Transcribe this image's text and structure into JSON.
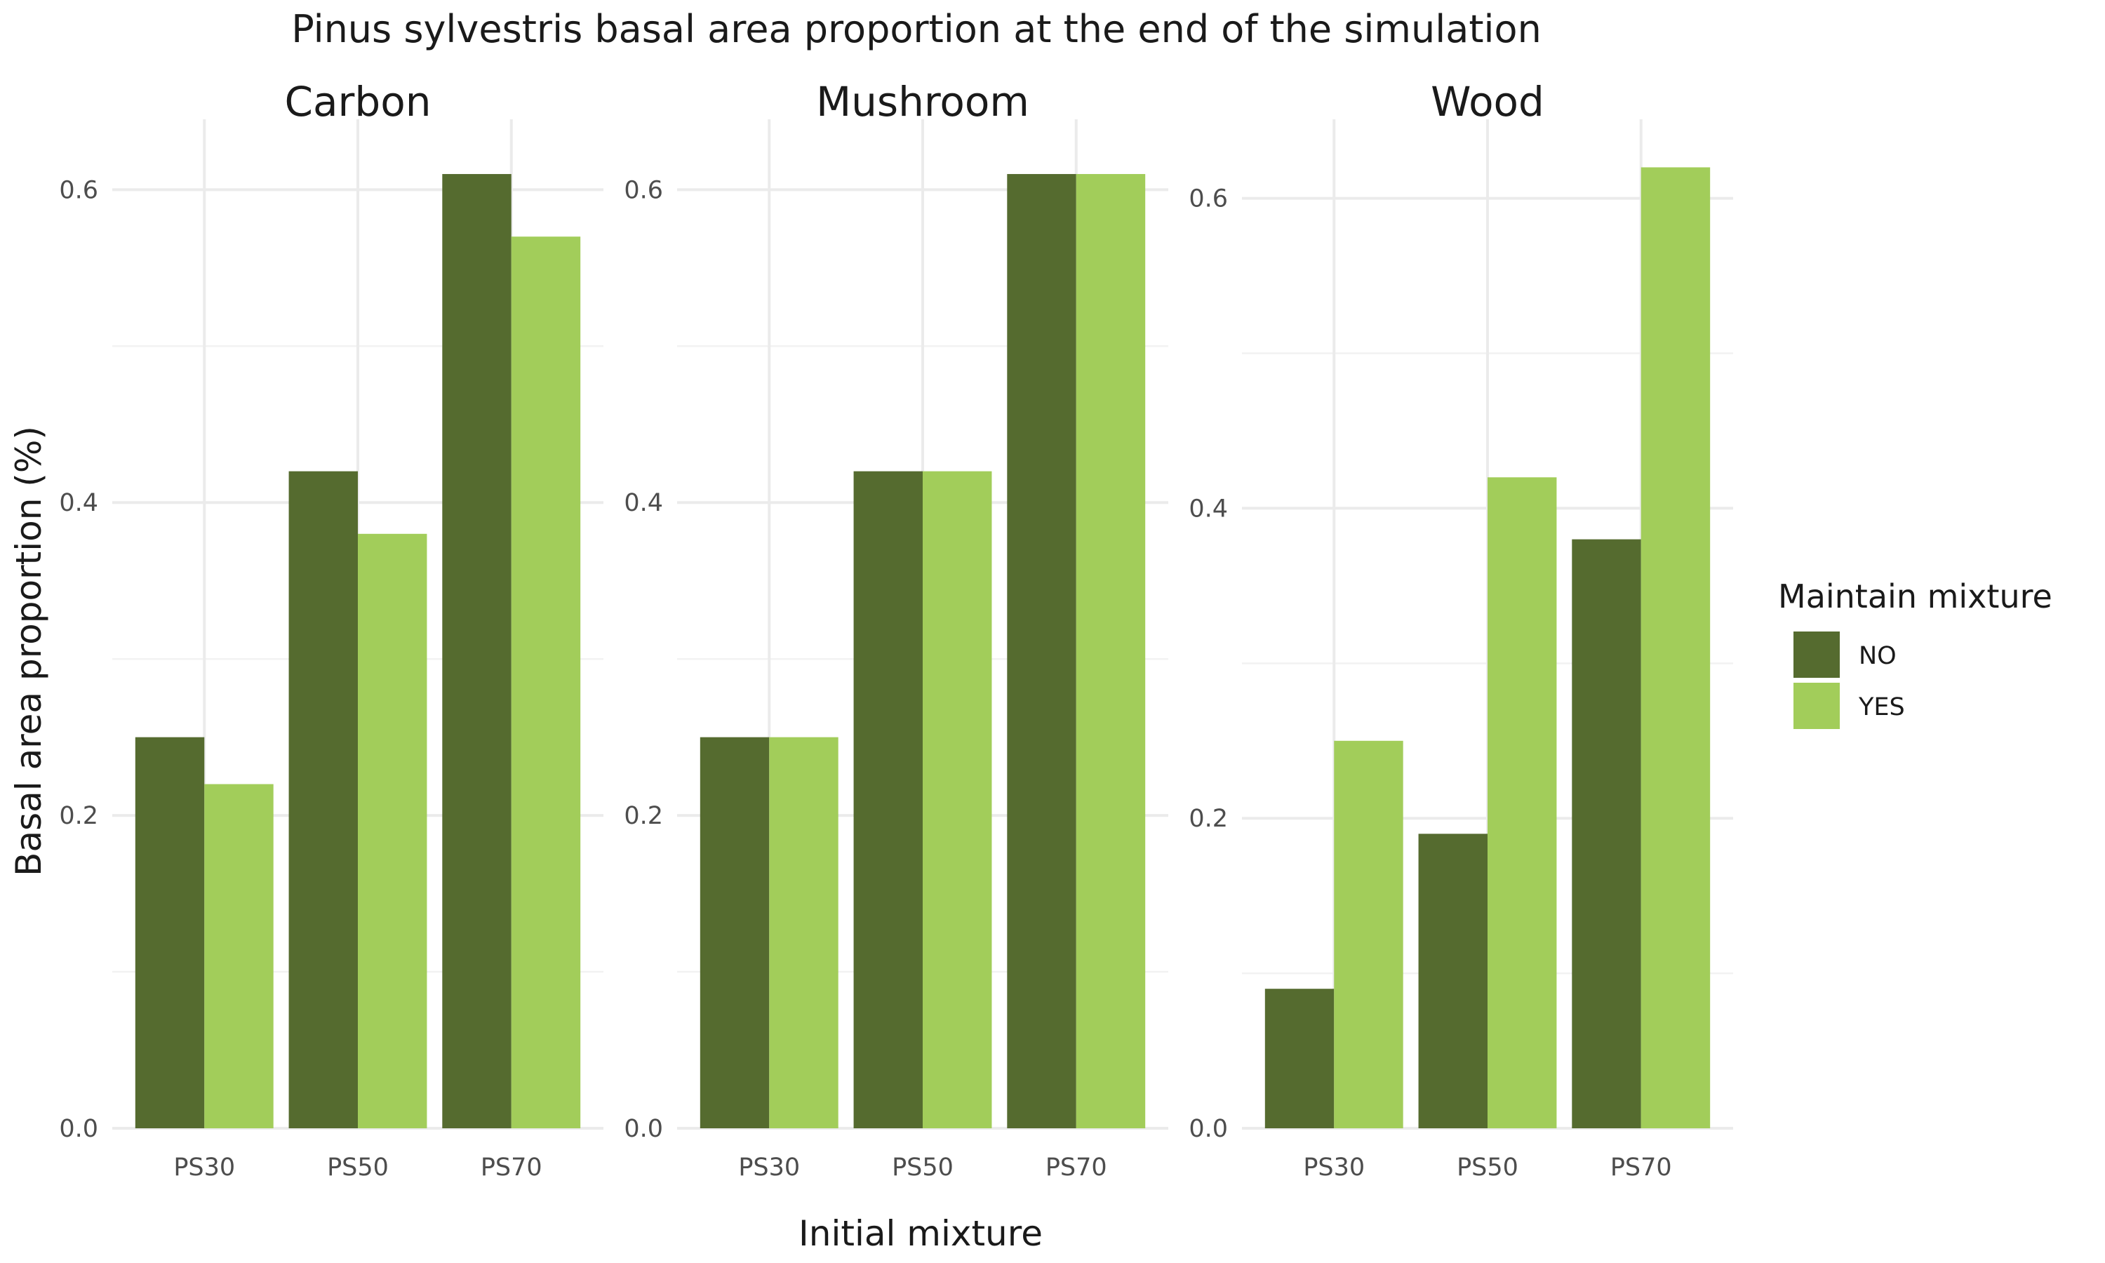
{
  "chart_data": {
    "type": "bar",
    "title": "Pinus sylvestris basal area proportion at the end of the simulation",
    "xlabel": "Initial mixture",
    "ylabel": "Basal area proportion (%)",
    "categories": [
      "PS30",
      "PS50",
      "PS70"
    ],
    "grid": true,
    "legend": {
      "title": "Maintain mixture",
      "position": "right",
      "items": [
        {
          "label": "NO",
          "color": "#556b2f"
        },
        {
          "label": "YES",
          "color": "#a2cd5a"
        }
      ]
    },
    "facets": [
      {
        "name": "Carbon",
        "ylim": [
          0,
          0.645
        ],
        "yticks": [
          "0.0",
          "0.2",
          "0.4",
          "0.6"
        ],
        "series": [
          {
            "name": "NO",
            "values": [
              0.25,
              0.42,
              0.61
            ]
          },
          {
            "name": "YES",
            "values": [
              0.22,
              0.38,
              0.57
            ]
          }
        ]
      },
      {
        "name": "Mushroom",
        "ylim": [
          0,
          0.645
        ],
        "yticks": [
          "0.0",
          "0.2",
          "0.4",
          "0.6"
        ],
        "series": [
          {
            "name": "NO",
            "values": [
              0.25,
              0.42,
              0.61
            ]
          },
          {
            "name": "YES",
            "values": [
              0.25,
              0.42,
              0.61
            ]
          }
        ]
      },
      {
        "name": "Wood",
        "ylim": [
          0,
          0.651
        ],
        "yticks": [
          "0.0",
          "0.2",
          "0.4",
          "0.6"
        ],
        "series": [
          {
            "name": "NO",
            "values": [
              0.09,
              0.19,
              0.38
            ]
          },
          {
            "name": "YES",
            "values": [
              0.25,
              0.42,
              0.62
            ]
          }
        ]
      }
    ]
  }
}
